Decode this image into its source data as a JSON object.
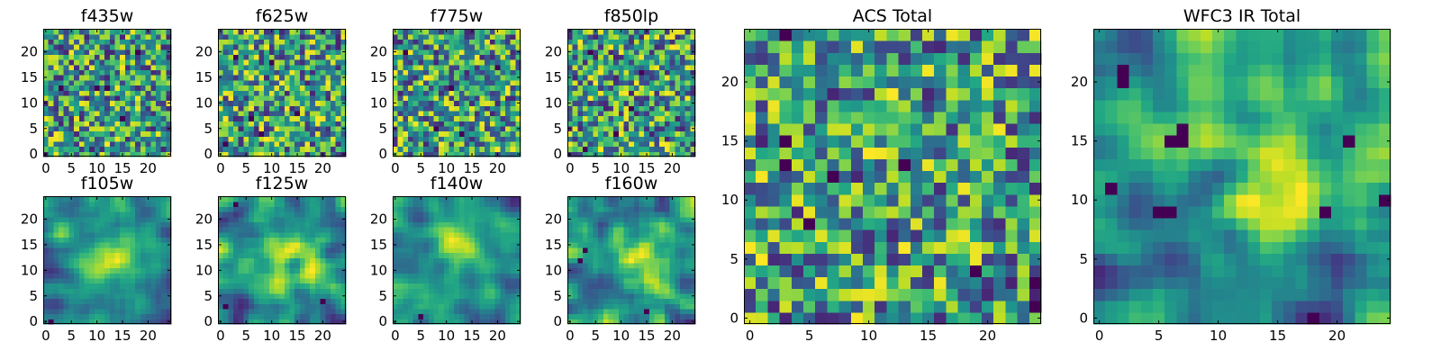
{
  "chart_data": [
    {
      "type": "heatmap",
      "title": "f435w",
      "grid_size": 25,
      "xlim": [
        0,
        24
      ],
      "ylim": [
        0,
        24
      ],
      "xticks": [
        0,
        5,
        10,
        15,
        20
      ],
      "yticks": [
        0,
        5,
        10,
        15,
        20
      ],
      "colormap": "viridis",
      "pattern": "noise",
      "seed": 11,
      "min_cells": [
        [
          12,
          13
        ],
        [
          10,
          13
        ],
        [
          3,
          13
        ],
        [
          18,
          20
        ],
        [
          15,
          7
        ]
      ]
    },
    {
      "type": "heatmap",
      "title": "f625w",
      "grid_size": 25,
      "xlim": [
        0,
        24
      ],
      "ylim": [
        0,
        24
      ],
      "xticks": [
        0,
        5,
        10,
        15,
        20
      ],
      "yticks": [
        0,
        5,
        10,
        15,
        20
      ],
      "colormap": "viridis",
      "pattern": "noise",
      "seed": 23,
      "min_cells": [
        [
          3,
          19
        ],
        [
          10,
          18
        ],
        [
          6,
          7
        ],
        [
          8,
          4
        ],
        [
          15,
          8
        ],
        [
          1,
          2
        ]
      ]
    },
    {
      "type": "heatmap",
      "title": "f775w",
      "grid_size": 25,
      "xlim": [
        0,
        24
      ],
      "ylim": [
        0,
        24
      ],
      "xticks": [
        0,
        5,
        10,
        15,
        20
      ],
      "yticks": [
        0,
        5,
        10,
        15,
        20
      ],
      "colormap": "viridis",
      "pattern": "noise",
      "seed": 37,
      "min_cells": [
        [
          2,
          20
        ],
        [
          11,
          13
        ],
        [
          8,
          5
        ],
        [
          20,
          17
        ],
        [
          13,
          4
        ]
      ]
    },
    {
      "type": "heatmap",
      "title": "f850lp",
      "grid_size": 25,
      "xlim": [
        0,
        24
      ],
      "ylim": [
        0,
        24
      ],
      "xticks": [
        0,
        5,
        10,
        15,
        20
      ],
      "yticks": [
        0,
        5,
        10,
        15,
        20
      ],
      "colormap": "viridis",
      "pattern": "noise",
      "seed": 41,
      "min_cells": [
        [
          4,
          20
        ],
        [
          14,
          16
        ],
        [
          3,
          1
        ],
        [
          9,
          4
        ],
        [
          12,
          9
        ]
      ]
    },
    {
      "type": "heatmap",
      "title": "f105w",
      "grid_size": 25,
      "xlim": [
        0,
        24
      ],
      "ylim": [
        0,
        24
      ],
      "xticks": [
        0,
        5,
        10,
        15,
        20
      ],
      "yticks": [
        0,
        5,
        10,
        15,
        20
      ],
      "colormap": "viridis",
      "pattern": "smooth",
      "seed": 53,
      "min_cells": [
        [
          1,
          0
        ]
      ]
    },
    {
      "type": "heatmap",
      "title": "f125w",
      "grid_size": 25,
      "xlim": [
        0,
        24
      ],
      "ylim": [
        0,
        24
      ],
      "xticks": [
        0,
        5,
        10,
        15,
        20
      ],
      "yticks": [
        0,
        5,
        10,
        15,
        20
      ],
      "colormap": "viridis",
      "pattern": "smooth",
      "seed": 67,
      "min_cells": [
        [
          3,
          23
        ],
        [
          1,
          3
        ],
        [
          20,
          4
        ]
      ]
    },
    {
      "type": "heatmap",
      "title": "f140w",
      "grid_size": 25,
      "xlim": [
        0,
        24
      ],
      "ylim": [
        0,
        24
      ],
      "xticks": [
        0,
        5,
        10,
        15,
        20
      ],
      "yticks": [
        0,
        5,
        10,
        15,
        20
      ],
      "colormap": "viridis",
      "pattern": "smooth",
      "seed": 79,
      "min_cells": [
        [
          5,
          1
        ]
      ]
    },
    {
      "type": "heatmap",
      "title": "f160w",
      "grid_size": 25,
      "xlim": [
        0,
        24
      ],
      "ylim": [
        0,
        24
      ],
      "xticks": [
        0,
        5,
        10,
        15,
        20
      ],
      "yticks": [
        0,
        5,
        10,
        15,
        20
      ],
      "colormap": "viridis",
      "pattern": "smooth",
      "seed": 83,
      "min_cells": [
        [
          3,
          14
        ],
        [
          15,
          2
        ],
        [
          2,
          12
        ]
      ]
    },
    {
      "type": "heatmap",
      "title": "ACS Total",
      "grid_size": 25,
      "xlim": [
        0,
        24
      ],
      "ylim": [
        0,
        24
      ],
      "xticks": [
        0,
        5,
        10,
        15,
        20
      ],
      "yticks": [
        0,
        5,
        10,
        15,
        20
      ],
      "colormap": "viridis",
      "pattern": "noise",
      "seed": 97,
      "min_cells": [
        [
          3,
          15
        ],
        [
          3,
          13
        ],
        [
          7,
          12
        ],
        [
          13,
          13
        ],
        [
          5,
          8
        ],
        [
          19,
          4
        ],
        [
          24,
          3
        ],
        [
          24,
          1
        ],
        [
          3,
          24
        ]
      ]
    },
    {
      "type": "heatmap",
      "title": "WFC3 IR Total",
      "grid_size": 25,
      "xlim": [
        0,
        24
      ],
      "ylim": [
        0,
        24
      ],
      "xticks": [
        0,
        5,
        10,
        15,
        20
      ],
      "yticks": [
        0,
        5,
        10,
        15,
        20
      ],
      "colormap": "viridis",
      "pattern": "smooth",
      "seed": 101,
      "min_cells": [
        [
          2,
          21
        ],
        [
          6,
          15
        ],
        [
          7,
          15
        ],
        [
          21,
          15
        ],
        [
          5,
          9
        ],
        [
          6,
          9
        ],
        [
          19,
          9
        ],
        [
          24,
          10
        ],
        [
          18,
          0
        ],
        [
          1,
          11
        ],
        [
          7,
          16
        ],
        [
          2,
          20
        ]
      ]
    }
  ]
}
